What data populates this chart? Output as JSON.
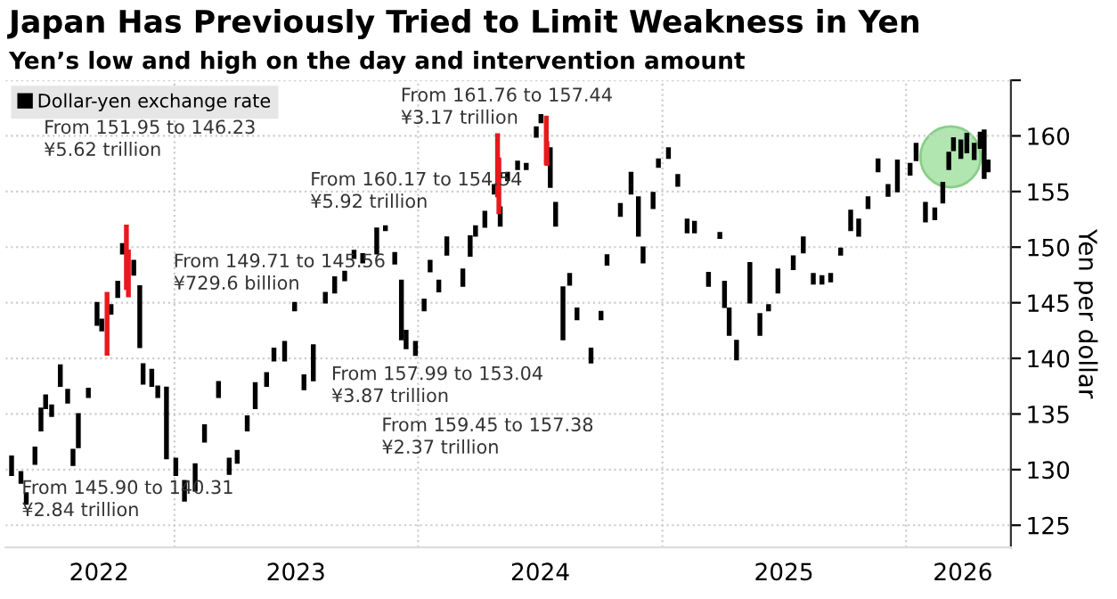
{
  "chart_data": {
    "type": "bar",
    "title": "Japan Has Previously Tried to Limit Weakness in Yen",
    "subtitle": "Yen’s low and high on the day and intervention amount",
    "ylabel": "Yen per dollar",
    "xlim": [
      "2022-04-23",
      "2026-06-07"
    ],
    "xticks": [
      {
        "value": "2022-09-10",
        "label": "2022"
      },
      {
        "value": "2023-01-01",
        "label": null
      },
      {
        "value": "2023-07-02",
        "label": "2023"
      },
      {
        "value": "2024-01-01",
        "label": null
      },
      {
        "value": "2024-07-02",
        "label": "2024"
      },
      {
        "value": "2025-01-01",
        "label": null
      },
      {
        "value": "2025-07-02",
        "label": "2025"
      },
      {
        "value": "2026-01-01",
        "label": null
      },
      {
        "value": "2026-03-27",
        "label": "2026"
      }
    ],
    "ylim": [
      123,
      165
    ],
    "yticks": [
      125,
      130,
      135,
      140,
      145,
      150,
      155,
      160,
      {
        "value": 165,
        "label": null
      }
    ],
    "grid": true,
    "legend": "top left",
    "series": [
      {
        "name": "Dollar-yen exchange rate",
        "color": "#000000",
        "x": [
          "2022-05-02",
          "2022-05-16",
          "2022-05-24",
          "2022-06-06",
          "2022-06-15",
          "2022-06-22",
          "2022-07-01",
          "2022-07-14",
          "2022-07-25",
          "2022-08-02",
          "2022-08-10",
          "2022-08-25",
          "2022-09-07",
          "2022-09-14",
          "2022-09-28",
          "2022-10-08",
          "2022-10-15",
          "2022-11-01",
          "2022-11-10",
          "2022-11-15",
          "2022-11-28",
          "2022-12-07",
          "2022-12-20",
          "2023-01-03",
          "2023-01-16",
          "2023-02-01",
          "2023-02-15",
          "2023-03-08",
          "2023-03-24",
          "2023-04-05",
          "2023-04-20",
          "2023-05-02",
          "2023-05-19",
          "2023-05-30",
          "2023-06-15",
          "2023-06-30",
          "2023-07-14",
          "2023-07-28",
          "2023-08-15",
          "2023-08-29",
          "2023-09-13",
          "2023-09-27",
          "2023-10-10",
          "2023-10-31",
          "2023-11-13",
          "2023-11-27",
          "2023-12-07",
          "2023-12-14",
          "2023-12-28",
          "2024-01-10",
          "2024-01-19",
          "2024-02-01",
          "2024-02-13",
          "2024-03-08",
          "2024-03-19",
          "2024-03-27",
          "2024-04-10",
          "2024-04-24",
          "2024-05-03",
          "2024-05-14",
          "2024-05-29",
          "2024-06-11",
          "2024-06-26",
          "2024-07-03",
          "2024-07-17",
          "2024-07-25",
          "2024-08-05",
          "2024-08-15",
          "2024-08-26",
          "2024-09-16",
          "2024-10-01",
          "2024-10-10",
          "2024-10-30",
          "2024-11-15",
          "2024-11-26",
          "2024-12-03",
          "2024-12-18",
          "2024-12-26",
          "2025-01-10",
          "2025-01-24",
          "2025-02-07",
          "2025-02-18",
          "2025-03-11",
          "2025-03-28",
          "2025-04-04",
          "2025-04-11",
          "2025-04-22",
          "2025-05-12",
          "2025-05-27",
          "2025-06-09",
          "2025-06-23",
          "2025-07-16",
          "2025-07-31",
          "2025-08-15",
          "2025-08-28",
          "2025-09-10",
          "2025-09-25",
          "2025-10-10",
          "2025-10-22",
          "2025-11-05",
          "2025-11-20",
          "2025-12-05",
          "2025-12-19",
          "2026-01-07",
          "2026-01-16",
          "2026-01-30",
          "2026-02-13",
          "2026-02-25",
          "2026-03-06",
          "2026-03-13",
          "2026-03-24",
          "2026-04-02",
          "2026-04-13",
          "2026-04-22",
          "2026-04-28",
          "2026-05-04"
        ],
        "base": [
          129.5,
          128.8,
          126.9,
          130.5,
          133.5,
          135.5,
          134.8,
          137.5,
          136.0,
          130.4,
          132.0,
          136.5,
          143.0,
          142.5,
          144.0,
          145.5,
          149.4,
          147.5,
          141.0,
          137.7,
          137.5,
          136.5,
          131.0,
          129.5,
          127.2,
          128.1,
          132.5,
          136.5,
          129.6,
          130.6,
          133.5,
          135.5,
          137.5,
          139.8,
          139.8,
          144.3,
          137.2,
          138.0,
          145.0,
          145.9,
          147.0,
          149.0,
          148.6,
          149.4,
          151.5,
          148.5,
          141.7,
          140.9,
          140.3,
          144.3,
          147.8,
          146.0,
          149.3,
          146.5,
          149.2,
          151.0,
          151.8,
          154.8,
          151.9,
          156.0,
          157.0,
          157.0,
          159.9,
          161.2,
          155.4,
          151.9,
          141.7,
          146.6,
          143.5,
          139.6,
          143.5,
          148.4,
          152.8,
          154.8,
          151.0,
          148.6,
          153.5,
          157.2,
          158.0,
          155.5,
          151.3,
          151.3,
          146.5,
          150.8,
          144.6,
          142.1,
          139.9,
          145.0,
          142.1,
          144.3,
          145.9,
          148.0,
          149.5,
          146.7,
          146.7,
          146.9,
          149.3,
          151.5,
          151.0,
          153.5,
          156.8,
          154.6,
          155.0,
          156.5,
          157.8,
          152.3,
          152.5,
          154.0,
          157.0,
          158.7,
          158.0,
          158.5,
          157.9,
          158.9,
          156.2,
          156.8
        ],
        "values": [
          1.7,
          1.0,
          1.0,
          1.5,
          2.0,
          1.2,
          1.0,
          1.9,
          1.2,
          1.4,
          3.0,
          0.8,
          2.0,
          1.0,
          0.8,
          1.4,
          0.9,
          1.3,
          5.5,
          1.8,
          1.5,
          1.0,
          6.4,
          1.5,
          1.8,
          2.4,
          1.5,
          1.4,
          1.4,
          1.1,
          1.3,
          2.3,
          1.2,
          1.1,
          1.7,
          0.7,
          1.3,
          3.2,
          0.9,
          1.4,
          0.8,
          0.7,
          0.8,
          2.3,
          0.4,
          1.0,
          5.3,
          1.6,
          1.2,
          1.0,
          1.0,
          1.0,
          1.6,
          1.5,
          1.8,
          0.9,
          1.4,
          0.8,
          1.7,
          0.7,
          0.7,
          0.5,
          0.9,
          0.7,
          3.5,
          2.1,
          4.7,
          1.0,
          1.0,
          1.3,
          0.7,
          0.9,
          1.1,
          1.9,
          3.5,
          1.4,
          1.4,
          0.7,
          0.9,
          1.0,
          1.2,
          1.0,
          1.2,
          0.5,
          2.3,
          2.4,
          1.7,
          3.6,
          1.9,
          0.5,
          2.1,
          1.2,
          1.4,
          0.9,
          0.7,
          0.7,
          0.6,
          1.8,
          1.5,
          1.0,
          1.1,
          1.0,
          2.8,
          1.0,
          1.5,
          1.7,
          1.0,
          1.8,
          1.5,
          1.1,
          1.6,
          1.7,
          1.4,
          1.4,
          4.3,
          1.0
        ]
      },
      {
        "color": "#e8191d",
        "x": [
          "2022-09-22",
          "2022-10-21",
          "2022-10-24",
          "2024-04-29",
          "2024-05-01",
          "2024-07-11",
          "2024-07-12"
        ],
        "base": [
          140.31,
          146.23,
          145.56,
          154.54,
          153.04,
          157.44,
          157.38
        ],
        "values": [
          5.59,
          5.72,
          4.15,
          5.63,
          4.95,
          4.32,
          2.07
        ]
      }
    ],
    "annotations": [
      "From 151.95 to 146.23\n¥5.62 trillion",
      "From 161.76 to 157.44\n¥3.17 trillion",
      "From 160.17 to 154.54\n¥5.92 trillion",
      "From 149.71 to 145.56\n¥729.6 billion",
      "From 157.99 to 153.04\n¥3.87 trillion",
      "From 159.45 to 157.38\n¥2.37 trillion",
      "From 145.90 to 140.31\n¥2.84 trillion"
    ]
  }
}
